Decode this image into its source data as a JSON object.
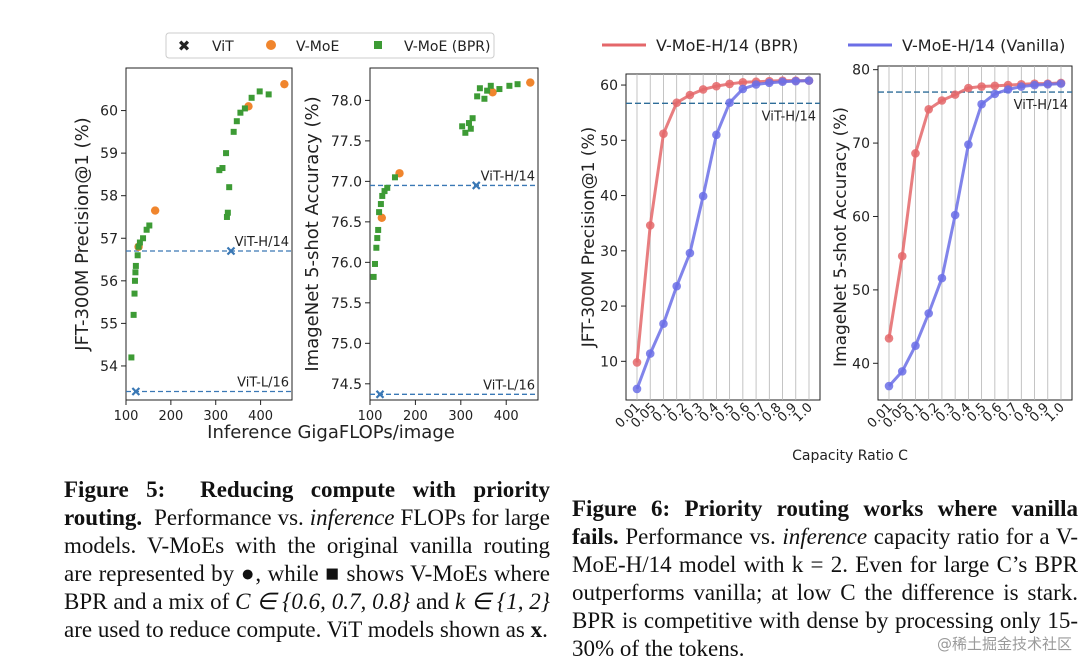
{
  "figure5": {
    "legend": [
      "ViT",
      "V-MoE",
      "V-MoE (BPR)"
    ],
    "shared_xlabel": "Inference GigaFLOPs/image",
    "caption": {
      "label": "Figure 5:",
      "bold": "Reducing compute with priority routing.",
      "t1": "Performance vs.",
      "italic": "inference",
      "t2": "FLOPs for large models. V-MoEs with the original vanilla routing are represented by ●, while ■ shows V-MoEs where BPR and a mix of",
      "math1": "C ∈ {0.6, 0.7, 0.8}",
      "t3": "and",
      "math2": "k ∈ {1, 2}",
      "t4": "are used to reduce compute. ViT models shown as",
      "bold_x": "x",
      "t5": "."
    }
  },
  "figure6": {
    "xlabel": "Capacity Ratio C",
    "legend": [
      "V-MoE-H/14 (BPR)",
      "V-MoE-H/14 (Vanilla)"
    ],
    "caption": {
      "label": "Figure 6:",
      "bold": "Priority routing works where vanilla fails.",
      "t1": "Performance vs.",
      "italic": "inference",
      "t2": "capacity ratio for a V-MoE-H/14 model with k = 2. Even for large C’s BPR outperforms vanilla; at low C the difference is stark. BPR is competitive with dense by processing only 15-30% of the tokens."
    }
  },
  "watermark": "@稀土掘金技术社区",
  "colors": {
    "vit": "#3a78b5",
    "vmoe": "#f0852d",
    "bpr": "#3d9b35",
    "bpr_line": "#e4676a",
    "vanilla_line": "#6b6ee6"
  },
  "chart_data": [
    {
      "type": "scatter",
      "ylabel": "JFT-300M Precision@1 (%)",
      "xlim": [
        100,
        470
      ],
      "ylim": [
        53.2,
        61.0
      ],
      "xticks": [
        100,
        200,
        300,
        400
      ],
      "yticks": [
        54,
        55,
        56,
        57,
        58,
        59,
        60
      ],
      "reference_lines": [
        {
          "label": "ViT-H/14",
          "y": 56.7
        },
        {
          "label": "ViT-L/16",
          "y": 53.4
        }
      ],
      "series": [
        {
          "name": "ViT",
          "marker": "x",
          "points": [
            [
              122,
              53.4
            ],
            [
              334,
              56.7
            ]
          ]
        },
        {
          "name": "V-MoE",
          "marker": "circle",
          "points": [
            [
              128,
              56.8
            ],
            [
              165,
              57.65
            ],
            [
              373,
              60.1
            ],
            [
              453,
              60.62
            ]
          ]
        },
        {
          "name": "V-MoE (BPR)",
          "marker": "square",
          "points": [
            [
              112,
              54.2
            ],
            [
              117,
              55.2
            ],
            [
              119,
              55.7
            ],
            [
              120,
              56.0
            ],
            [
              121,
              56.2
            ],
            [
              122,
              56.35
            ],
            [
              126,
              56.6
            ],
            [
              128,
              56.8
            ],
            [
              131,
              56.9
            ],
            [
              138,
              57.0
            ],
            [
              146,
              57.2
            ],
            [
              152,
              57.3
            ],
            [
              308,
              58.6
            ],
            [
              315,
              58.65
            ],
            [
              323,
              59.0
            ],
            [
              325,
              57.5
            ],
            [
              327,
              57.6
            ],
            [
              330,
              58.2
            ],
            [
              340,
              59.5
            ],
            [
              347,
              59.75
            ],
            [
              355,
              59.95
            ],
            [
              365,
              60.05
            ],
            [
              380,
              60.3
            ],
            [
              398,
              60.45
            ],
            [
              418,
              60.38
            ]
          ]
        }
      ]
    },
    {
      "type": "scatter",
      "ylabel": "ImageNet 5-shot Accuracy (%)",
      "xlim": [
        100,
        470
      ],
      "ylim": [
        74.3,
        78.4
      ],
      "xticks": [
        100,
        200,
        300,
        400
      ],
      "yticks": [
        74.5,
        75.0,
        75.5,
        76.0,
        76.5,
        77.0,
        77.5,
        78.0
      ],
      "reference_lines": [
        {
          "label": "ViT-H/14",
          "y": 76.95
        },
        {
          "label": "ViT-L/16",
          "y": 74.37
        }
      ],
      "series": [
        {
          "name": "ViT",
          "marker": "x",
          "points": [
            [
              122,
              74.37
            ],
            [
              334,
              76.95
            ]
          ]
        },
        {
          "name": "V-MoE",
          "marker": "circle",
          "points": [
            [
              126,
              76.55
            ],
            [
              165,
              77.1
            ],
            [
              370,
              78.1
            ],
            [
              453,
              78.22
            ]
          ]
        },
        {
          "name": "V-MoE (BPR)",
          "marker": "square",
          "points": [
            [
              108,
              75.82
            ],
            [
              111,
              75.98
            ],
            [
              114,
              76.18
            ],
            [
              116,
              76.3
            ],
            [
              118,
              76.4
            ],
            [
              120,
              76.62
            ],
            [
              124,
              76.72
            ],
            [
              127,
              76.82
            ],
            [
              132,
              76.88
            ],
            [
              138,
              76.92
            ],
            [
              155,
              77.05
            ],
            [
              303,
              77.68
            ],
            [
              310,
              77.6
            ],
            [
              318,
              77.72
            ],
            [
              322,
              77.65
            ],
            [
              326,
              77.78
            ],
            [
              336,
              78.05
            ],
            [
              342,
              78.15
            ],
            [
              352,
              78.02
            ],
            [
              358,
              78.12
            ],
            [
              366,
              78.18
            ],
            [
              385,
              78.14
            ],
            [
              407,
              78.18
            ],
            [
              425,
              78.2
            ]
          ]
        }
      ]
    },
    {
      "type": "line",
      "ylabel": "JFT-300M Precision@1 (%)",
      "xlabel": "Capacity Ratio C",
      "categories": [
        "0.01",
        "0.05",
        "0.1",
        "0.2",
        "0.3",
        "0.4",
        "0.5",
        "0.6",
        "0.7",
        "0.8",
        "0.9",
        "1.0"
      ],
      "x": [
        0.01,
        0.02,
        0.05,
        0.1,
        0.15,
        0.2,
        0.3,
        0.4,
        0.5,
        0.6,
        0.7,
        0.8,
        0.9,
        1.0
      ],
      "ylim": [
        3,
        62
      ],
      "yticks": [
        10,
        20,
        30,
        40,
        50,
        60
      ],
      "reference_lines": [
        {
          "label": "ViT-H/14",
          "y": 56.7
        }
      ],
      "series": [
        {
          "name": "V-MoE-H/14 (BPR)",
          "values": [
            9.8,
            34.6,
            51.2,
            56.8,
            58.2,
            59.2,
            59.8,
            60.2,
            60.5,
            60.6,
            60.7,
            60.8,
            60.8,
            60.8
          ]
        },
        {
          "name": "V-MoE-H/14 (Vanilla)",
          "values": [
            5.0,
            11.4,
            16.8,
            23.6,
            29.6,
            39.9,
            51.0,
            56.8,
            59.3,
            60.1,
            60.4,
            60.6,
            60.7,
            60.8
          ]
        }
      ]
    },
    {
      "type": "line",
      "ylabel": "ImageNet 5-shot Accuracy (%)",
      "xlabel": "Capacity Ratio C",
      "categories": [
        "0.01",
        "0.05",
        "0.1",
        "0.2",
        "0.3",
        "0.4",
        "0.5",
        "0.6",
        "0.7",
        "0.8",
        "0.9",
        "1.0"
      ],
      "x": [
        0.01,
        0.02,
        0.05,
        0.1,
        0.15,
        0.2,
        0.3,
        0.4,
        0.5,
        0.6,
        0.7,
        0.8,
        0.9,
        1.0
      ],
      "ylim": [
        35,
        80.5
      ],
      "yticks": [
        40,
        50,
        60,
        70,
        80
      ],
      "reference_lines": [
        {
          "label": "ViT-H/14",
          "y": 76.95
        }
      ],
      "series": [
        {
          "name": "V-MoE-H/14 (BPR)",
          "values": [
            43.4,
            54.6,
            68.6,
            74.6,
            75.8,
            76.6,
            77.5,
            77.7,
            77.8,
            77.9,
            78.0,
            78.1,
            78.1,
            78.2
          ]
        },
        {
          "name": "V-MoE-H/14 (Vanilla)",
          "values": [
            36.9,
            38.9,
            42.4,
            46.8,
            51.6,
            60.2,
            69.8,
            75.3,
            76.7,
            77.3,
            77.7,
            77.9,
            78.0,
            78.1
          ]
        }
      ]
    }
  ]
}
